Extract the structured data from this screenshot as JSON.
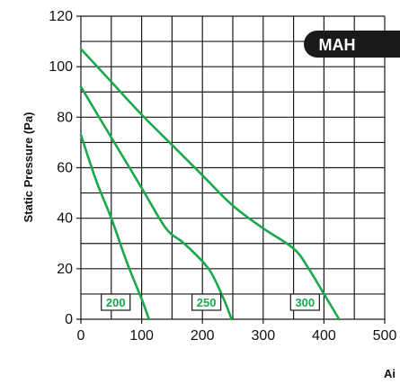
{
  "colors": {
    "curve": "#1aa84a",
    "grid": "#1a1a1a",
    "badge_bg": "#1a1a1a",
    "badge_text": "#ffffff"
  },
  "badge": "MAH",
  "chart_data": {
    "type": "line",
    "title": "",
    "xlabel": "Ai",
    "ylabel": "Static Pressure (Pa)",
    "xlim": [
      0,
      500
    ],
    "ylim": [
      0,
      120
    ],
    "x_ticks": [
      "0",
      "100",
      "200",
      "300",
      "400",
      "500"
    ],
    "y_ticks": [
      "0",
      "20",
      "40",
      "60",
      "80",
      "100",
      "120"
    ],
    "grid": true,
    "series": [
      {
        "name": "200",
        "points": [
          [
            0,
            73
          ],
          [
            25,
            55
          ],
          [
            50,
            40
          ],
          [
            75,
            23
          ],
          [
            100,
            8
          ],
          [
            112,
            0
          ]
        ]
      },
      {
        "name": "250",
        "points": [
          [
            0,
            92
          ],
          [
            50,
            72
          ],
          [
            100,
            52
          ],
          [
            140,
            36
          ],
          [
            170,
            30
          ],
          [
            210,
            20
          ],
          [
            235,
            8
          ],
          [
            248,
            0
          ]
        ]
      },
      {
        "name": "300",
        "points": [
          [
            0,
            107
          ],
          [
            50,
            94
          ],
          [
            100,
            81
          ],
          [
            150,
            69
          ],
          [
            200,
            57
          ],
          [
            250,
            45
          ],
          [
            300,
            36
          ],
          [
            350,
            28
          ],
          [
            375,
            20
          ],
          [
            405,
            8
          ],
          [
            425,
            0
          ]
        ]
      }
    ]
  }
}
